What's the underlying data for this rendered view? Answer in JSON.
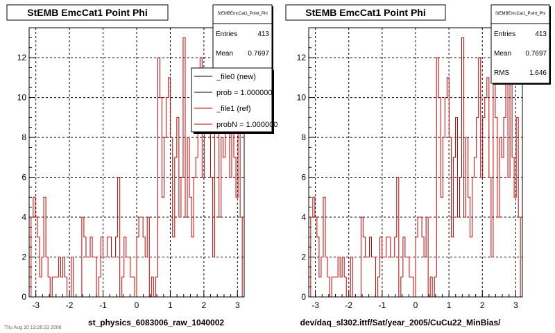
{
  "chart_data": [
    {
      "type": "histogram",
      "title": "StEMB EmcCat1 Point Phi",
      "xlabel": "st_physics_6083006_raw_1040002",
      "ylabel": "",
      "xlim": [
        -3.2,
        3.2
      ],
      "ylim": [
        0,
        13.5
      ],
      "xticks": [
        "-3",
        "-2",
        "-1",
        "0",
        "1",
        "2",
        "3"
      ],
      "yticks": [
        "0",
        "2",
        "4",
        "6",
        "8",
        "10",
        "12"
      ],
      "grid": true,
      "bins": 100,
      "values": [
        4,
        5,
        4,
        3,
        1,
        2,
        5,
        2,
        1,
        0,
        1,
        1,
        1,
        2,
        1,
        2,
        1,
        0,
        0,
        2,
        0,
        0,
        0,
        0,
        4,
        3,
        2,
        2,
        3,
        2,
        2,
        0,
        1,
        3,
        2,
        2,
        3,
        3,
        2,
        2,
        3,
        6,
        0,
        1,
        3,
        2,
        2,
        1,
        1,
        0,
        3,
        4,
        4,
        3,
        2,
        4,
        0,
        1,
        0,
        1,
        12,
        10,
        5,
        8,
        10,
        11,
        8,
        3,
        7,
        9,
        4,
        6,
        13,
        4,
        8,
        5,
        3,
        6,
        7,
        9,
        12,
        6,
        9,
        10,
        11,
        6,
        2,
        12,
        9,
        4,
        8,
        7,
        9,
        11,
        6,
        12,
        7,
        5,
        9,
        4
      ],
      "stats": {
        "title": "StEMBEmcCat1_Point_Phi",
        "rows": [
          {
            "label": "Entries",
            "value": "413"
          },
          {
            "label": "Mean",
            "value": "0.7697"
          }
        ]
      },
      "legend": {
        "placement": "top-right",
        "entries": [
          {
            "label": "_file0 (new)",
            "color": "#000000"
          },
          {
            "label": "prob = 1.000000",
            "color": "#000000"
          },
          {
            "label": "_file1 (ref)",
            "color": "#cc0000"
          },
          {
            "label": "probN = 1.000000",
            "color": "#cc0000"
          }
        ]
      }
    },
    {
      "type": "histogram",
      "title": "StEMB EmcCat1 Point Phi",
      "xlabel": "dev/daq_sl302.ittf/Sat/year_2005/CuCu22_MinBias/",
      "ylabel": "",
      "xlim": [
        -3.2,
        3.2
      ],
      "ylim": [
        0,
        13.5
      ],
      "xticks": [
        "-3",
        "-2",
        "-1",
        "0",
        "1",
        "2",
        "3"
      ],
      "yticks": [
        "0",
        "2",
        "4",
        "6",
        "8",
        "10",
        "12"
      ],
      "grid": true,
      "bins": 100,
      "values": [
        4,
        5,
        4,
        3,
        1,
        2,
        5,
        2,
        1,
        0,
        1,
        1,
        1,
        2,
        1,
        2,
        1,
        0,
        0,
        2,
        0,
        0,
        0,
        0,
        4,
        3,
        2,
        2,
        3,
        2,
        2,
        0,
        1,
        3,
        2,
        2,
        3,
        3,
        2,
        2,
        3,
        6,
        0,
        1,
        3,
        2,
        2,
        1,
        1,
        0,
        3,
        4,
        4,
        3,
        2,
        4,
        0,
        1,
        0,
        1,
        12,
        10,
        5,
        8,
        10,
        11,
        8,
        3,
        7,
        9,
        4,
        6,
        13,
        4,
        8,
        5,
        3,
        6,
        7,
        9,
        12,
        6,
        9,
        10,
        11,
        6,
        2,
        12,
        9,
        4,
        8,
        7,
        9,
        11,
        6,
        12,
        7,
        5,
        9,
        4
      ],
      "stats": {
        "title": "StEMBEmcCat1_Point_Phi",
        "rows": [
          {
            "label": "Entries",
            "value": "413"
          },
          {
            "label": "Mean",
            "value": "0.7697"
          },
          {
            "label": "RMS",
            "value": "1.646"
          }
        ]
      }
    }
  ],
  "footnote": "Thu Aug 10 13:26:33 2006"
}
